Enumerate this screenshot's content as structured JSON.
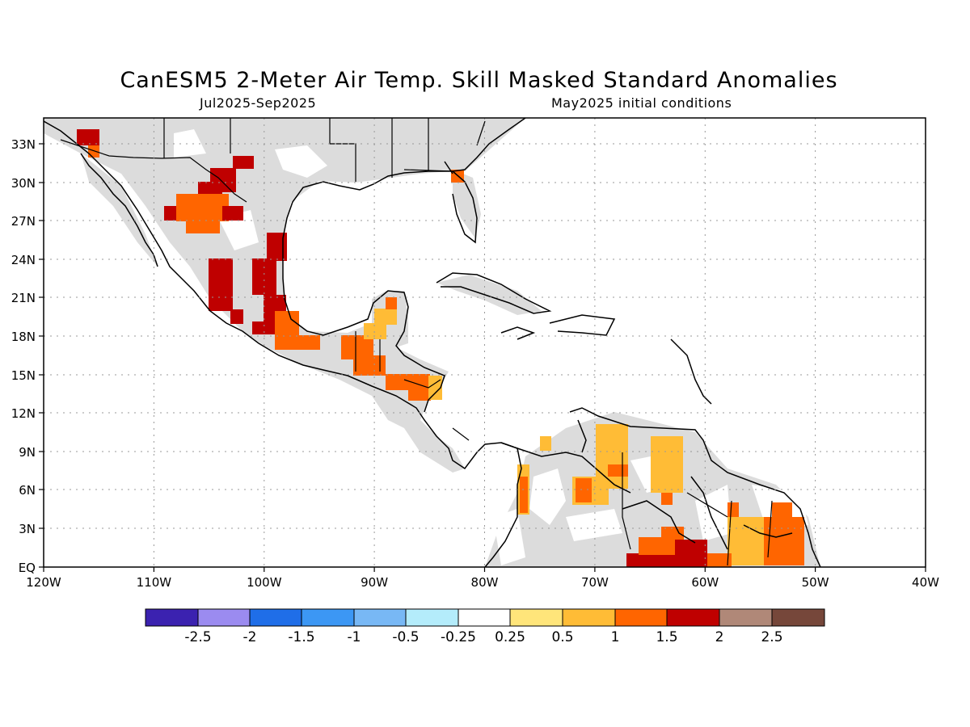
{
  "title": "CanESM5 2-Meter Air Temp. Skill Masked Standard Anomalies",
  "subtitle_left": "Jul2025-Sep2025",
  "subtitle_right": "May2025 initial conditions",
  "map": {
    "lon_range": [
      -120,
      -40
    ],
    "lat_range": [
      0,
      35
    ],
    "lat_labels": [
      "33N",
      "30N",
      "27N",
      "24N",
      "21N",
      "18N",
      "15N",
      "12N",
      "9N",
      "6N",
      "3N",
      "EQ"
    ],
    "lon_labels": [
      "120W",
      "110W",
      "100W",
      "90W",
      "80W",
      "70W",
      "60W",
      "50W",
      "40W"
    ],
    "grid": true
  },
  "colorbar": {
    "labels": [
      "-2.5",
      "-2",
      "-1.5",
      "-1",
      "-0.5",
      "-0.25",
      "0.25",
      "0.5",
      "1",
      "1.5",
      "2",
      "2.5"
    ],
    "colors": [
      "#3b22b0",
      "#9b8bf0",
      "#1f6ee8",
      "#3c97f4",
      "#78b8f5",
      "#b4ecfb",
      "#ffffff",
      "#ffe57a",
      "#ffbc36",
      "#ff6500",
      "#bf0000",
      "#b08878",
      "#76473a"
    ]
  },
  "colors": {
    "land_skill_mask": "#dcdcdc",
    "coastline": "#000000",
    "grid": "#999999"
  }
}
